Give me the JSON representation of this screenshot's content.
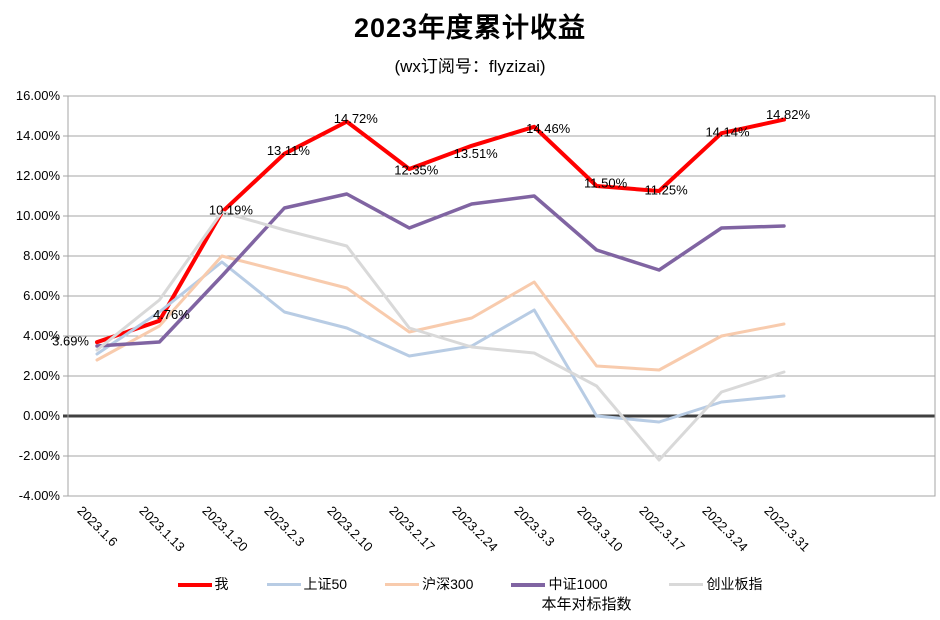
{
  "header": {
    "title": "2023年度累计收益",
    "subtitle": "(wx订阅号：flyzizai)"
  },
  "legend": {
    "note_under_zz1000": "本年对标指数"
  },
  "chart_data": {
    "type": "line",
    "title": "2023年度累计收益",
    "subtitle": "(wx订阅号：flyzizai)",
    "categories": [
      "2023.1.6",
      "2023.1.13",
      "2023.1.20",
      "2023.2.3",
      "2023.2.10",
      "2023.2.17",
      "2023.2.24",
      "2023.3.3",
      "2023.3.10",
      "2022.3.17",
      "2022.3.24",
      "2022.3.31"
    ],
    "series": [
      {
        "name": "我",
        "color": "#FF0000",
        "line_width": 4,
        "values": [
          3.69,
          4.76,
          10.19,
          13.11,
          14.72,
          12.35,
          13.51,
          14.46,
          11.5,
          11.25,
          14.14,
          14.82
        ],
        "point_labels": [
          "3.69%",
          "4.76%",
          "10.19%",
          "13.11%",
          "14.72%",
          "12.35%",
          "13.51%",
          "14.46%",
          "11.50%",
          "11.25%",
          "14.14%",
          "14.82%"
        ]
      },
      {
        "name": "上证50",
        "color": "#B8CCE4",
        "line_width": 3,
        "values": [
          3.1,
          5.2,
          7.7,
          5.2,
          4.4,
          3.0,
          3.5,
          5.3,
          0.0,
          -0.3,
          0.7,
          1.0
        ]
      },
      {
        "name": "沪深300",
        "color": "#F8CBAD",
        "line_width": 3,
        "values": [
          2.8,
          4.5,
          8.0,
          7.2,
          6.4,
          4.2,
          4.9,
          6.7,
          2.5,
          2.3,
          4.0,
          4.6
        ]
      },
      {
        "name": "中证1000",
        "color": "#8064A2",
        "line_width": 3.5,
        "note": "本年对标指数",
        "values": [
          3.5,
          3.7,
          7.0,
          10.4,
          11.1,
          9.4,
          10.6,
          11.0,
          8.3,
          7.3,
          9.4,
          9.5
        ]
      },
      {
        "name": "创业板指",
        "color": "#D9D9D9",
        "line_width": 3,
        "values": [
          3.3,
          5.8,
          10.2,
          9.3,
          8.5,
          4.4,
          3.45,
          3.15,
          1.5,
          -2.2,
          1.2,
          2.2
        ]
      }
    ],
    "xlabel": "",
    "ylabel": "",
    "ylim": [
      -4,
      16
    ],
    "ytick_step": 2,
    "y_tick_labels": [
      "16.00%",
      "14.00%",
      "12.00%",
      "10.00%",
      "8.00%",
      "6.00%",
      "4.00%",
      "2.00%",
      "0.00%",
      "-2.00%",
      "-4.00%"
    ],
    "grid": true,
    "zero_line_color": "#404040",
    "grid_color": "#A6A6A6",
    "legend_position": "bottom"
  }
}
